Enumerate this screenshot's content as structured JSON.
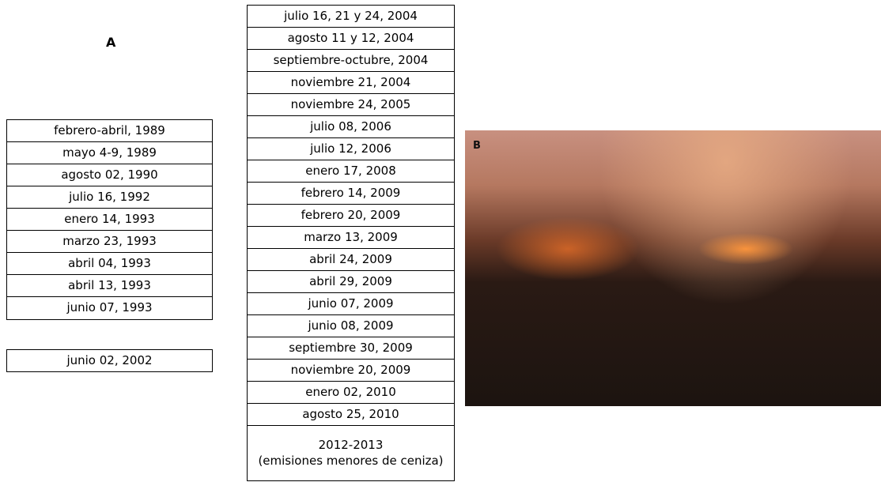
{
  "label_a": "A",
  "table_left": {
    "rows": [
      "febrero-abril, 1989",
      "mayo 4-9, 1989",
      "agosto 02, 1990",
      "julio 16, 1992",
      "enero 14, 1993",
      "marzo 23, 1993",
      "abril 04, 1993",
      "abril 13, 1993",
      "junio 07, 1993"
    ]
  },
  "table_left_extra": {
    "rows": [
      "junio 02, 2002"
    ]
  },
  "table_middle": {
    "rows": [
      "julio 16, 21 y 24, 2004",
      "agosto 11 y 12, 2004",
      "septiembre-octubre, 2004",
      "noviembre 21, 2004",
      "noviembre 24, 2005",
      "julio 08, 2006",
      "julio 12, 2006",
      "enero 17, 2008",
      "febrero 14, 2009",
      "febrero 20, 2009",
      "marzo 13, 2009",
      "abril 24, 2009",
      "abril 29, 2009",
      "junio 07, 2009",
      "junio 08, 2009",
      "septiembre 30, 2009",
      "noviembre 20, 2009",
      "enero 02, 2010",
      "agosto 25, 2010"
    ],
    "last": [
      "2012-2013",
      "(emisiones menores de ceniza)"
    ]
  },
  "photo": {
    "label": "B"
  }
}
